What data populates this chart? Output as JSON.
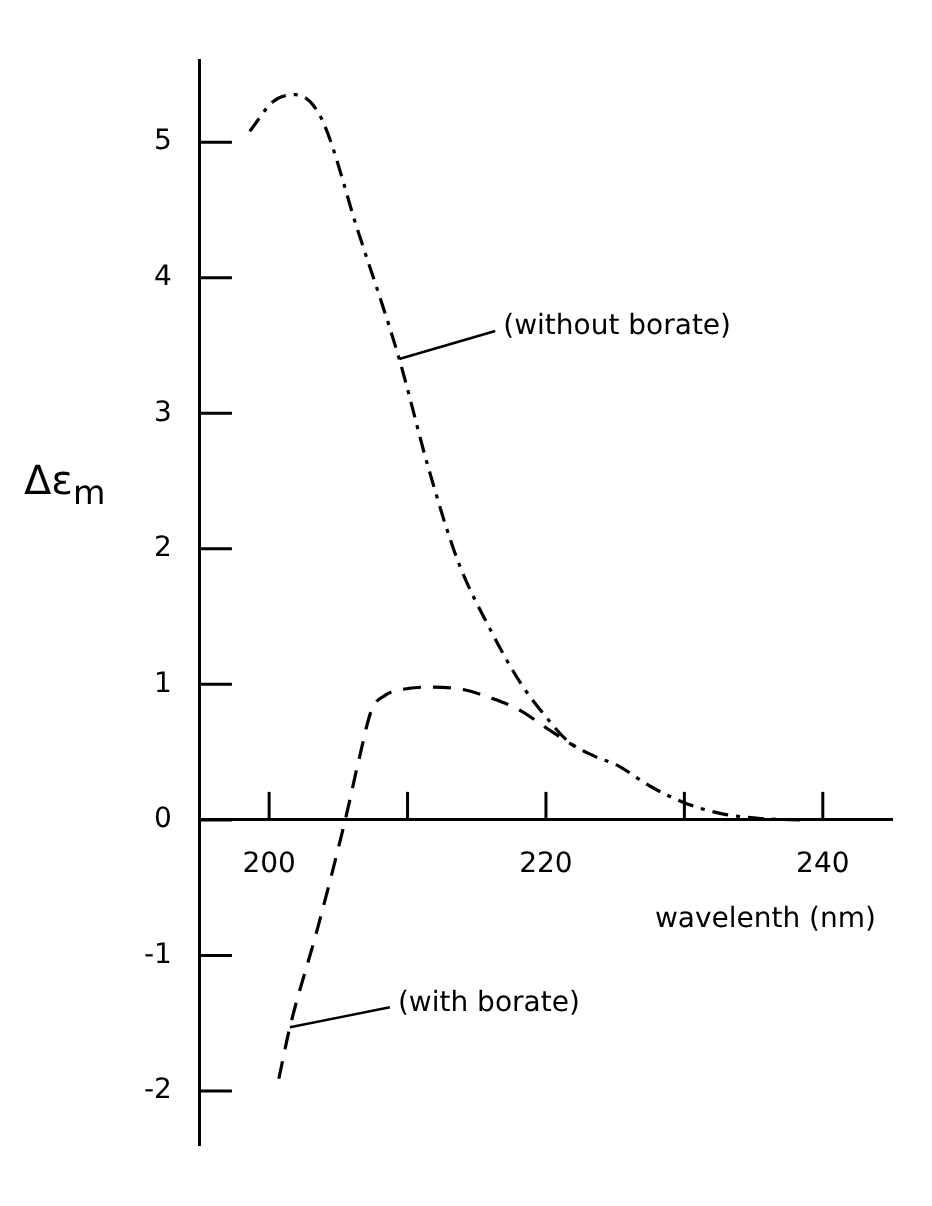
{
  "chart_data": {
    "type": "line",
    "xlabel": "wavelenth (nm)",
    "ylabel": "Δε$_{m}$",
    "xlim": [
      195,
      245
    ],
    "ylim": [
      -2.4,
      5.6
    ],
    "xticks": [
      {
        "value": 200,
        "label": "200"
      },
      {
        "value": 210,
        "label": null
      },
      {
        "value": 220,
        "label": "220"
      },
      {
        "value": 230,
        "label": null
      },
      {
        "value": 240,
        "label": "240"
      }
    ],
    "yticks": [
      -2,
      -1,
      0,
      1,
      2,
      3,
      4,
      5
    ],
    "grid": false,
    "legend": false,
    "marker": "none",
    "series": [
      {
        "color": "#000000",
        "line_style": "dashdot",
        "x": [
          198.6,
          200.3,
          201.9,
          203.8,
          206.4,
          209.4,
          211.5,
          213.6,
          216,
          218.1,
          220,
          221.6,
          223.5,
          225.2,
          227.5,
          229.9,
          232.5,
          235.5,
          238.6
        ],
        "values": [
          5.08,
          5.3,
          5.35,
          5.17,
          4.35,
          3.4,
          2.6,
          1.92,
          1.4,
          1.02,
          0.76,
          0.58,
          0.47,
          0.4,
          0.25,
          0.13,
          0.05,
          0.01,
          0
        ]
      },
      {
        "color": "#000000",
        "line_style": "dashed",
        "x": [
          200.7,
          201.5,
          203.5,
          205.5,
          206.5,
          207.4,
          208.4,
          209.5,
          211.8,
          214.1,
          216,
          218.1,
          220,
          222.1
        ],
        "values": [
          -1.91,
          -1.53,
          -0.8,
          0,
          0.45,
          0.81,
          0.92,
          0.96,
          0.98,
          0.96,
          0.9,
          0.81,
          0.68,
          0.54
        ]
      }
    ],
    "annotations": [
      {
        "text": "(without borate)",
        "x": 209.4,
        "y": 3.4
      },
      {
        "text": "(with borate)",
        "x": 201.5,
        "y": -1.53
      }
    ]
  }
}
